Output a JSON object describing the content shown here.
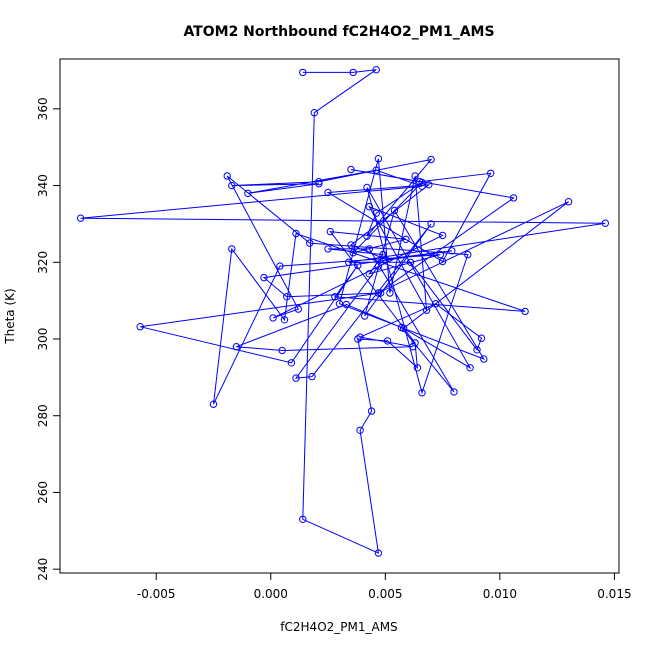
{
  "chart_data": {
    "type": "line",
    "title": "ATOM2 Northbound fC2H4O2_PM1_AMS",
    "xlabel": "fC2H4O2_PM1_AMS",
    "ylabel": "Theta (K)",
    "xlim": [
      -0.0092,
      0.0152
    ],
    "ylim": [
      239,
      373
    ],
    "xticks": [
      -0.005,
      0.0,
      0.005,
      0.01,
      0.015
    ],
    "xtick_labels": [
      "-0.005",
      "0.000",
      "0.005",
      "0.010",
      "0.015"
    ],
    "yticks": [
      240,
      260,
      280,
      300,
      320,
      340,
      360
    ],
    "ytick_labels": [
      "240",
      "260",
      "280",
      "300",
      "320",
      "340",
      "360"
    ],
    "grid": false,
    "series": [
      {
        "color": "#0000ff",
        "marker": "open-circle",
        "x": [
          0.0014,
          0.0036,
          0.0046,
          0.0019,
          0.0014,
          0.0047,
          0.0039,
          0.0044,
          0.0038,
          0.0051,
          0.0064,
          0.0063,
          0.0026,
          0.0059,
          0.0036,
          0.0066,
          0.0046,
          0.0042,
          0.007,
          0.0021,
          -0.0017,
          0.0021,
          -0.001,
          0.0046,
          0.0066,
          -0.0083,
          0.0146,
          0.0034,
          0.0061,
          0.009,
          0.0092,
          0.0072,
          0.0039,
          0.0062,
          0.0005,
          -0.0015,
          0.0033,
          0.0057,
          0.008,
          0.0043,
          0.0025,
          0.0049,
          0.0043,
          0.0074,
          0.0004,
          -0.0025,
          -0.0017,
          0.0006,
          0.0011,
          0.0111,
          0.0028,
          0.0038,
          0.0009,
          -0.0057,
          0.0048,
          0.0007,
          -0.0003,
          0.0079,
          0.005,
          0.0035,
          0.0069,
          0.0025,
          0.0075,
          0.0096,
          0.0065,
          0.0035,
          0.0106,
          0.0047,
          0.013,
          0.0058,
          0.0087,
          0.0042,
          0.0066,
          0.0086,
          0.0017,
          -0.0019,
          0.0012,
          0.0001,
          0.0075,
          0.0043,
          0.0068,
          0.0063,
          0.0052,
          0.0047,
          0.003,
          0.0093,
          0.0054,
          0.0041,
          0.007,
          0.0018,
          0.0011,
          0.0047
        ],
        "y": [
          369.5,
          369.5,
          370.2,
          359.0,
          253.0,
          244.2,
          276.2,
          281.2,
          300.0,
          299.5,
          292.5,
          299.0,
          328.0,
          326.0,
          322.5,
          340.8,
          332.8,
          326.8,
          346.8,
          341.0,
          340.0,
          340.5,
          338.0,
          344.0,
          339.8,
          331.5,
          330.2,
          320.0,
          320.0,
          297.2,
          300.2,
          309.2,
          300.5,
          298.0,
          297.0,
          298.0,
          309.0,
          303.0,
          286.2,
          323.5,
          323.5,
          322.0,
          317.0,
          322.0,
          319.0,
          283.0,
          323.5,
          305.0,
          327.5,
          307.2,
          311.0,
          319.2,
          293.8,
          303.2,
          312.0,
          311.0,
          316.0,
          323.0,
          320.8,
          324.5,
          340.2,
          338.2,
          320.2,
          343.2,
          341.0,
          344.2,
          336.8,
          312.0,
          335.8,
          302.8,
          292.5,
          339.5,
          286.0,
          322.0,
          325.0,
          342.5,
          307.8,
          305.5,
          327.0,
          334.5,
          307.5,
          342.5,
          312.0,
          347.0,
          309.2,
          294.8,
          333.5,
          306.0,
          330.0,
          290.2,
          289.8,
          319.0
        ]
      }
    ]
  }
}
